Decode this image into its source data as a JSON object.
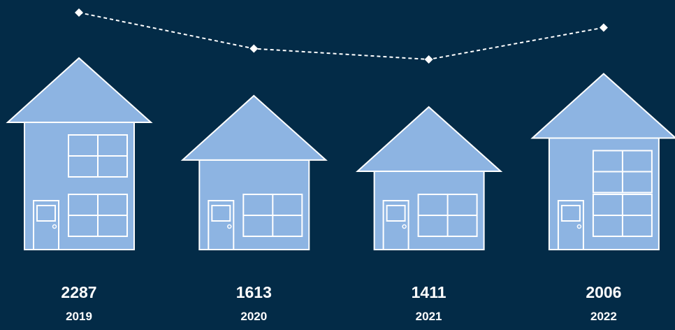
{
  "chart_data": {
    "type": "pictorial",
    "categories": [
      "2019",
      "2020",
      "2021",
      "2022"
    ],
    "values": [
      2287,
      1613,
      1411,
      2006
    ],
    "color": "#8db4e2",
    "line_color": "#ffffff",
    "background": "#032b47"
  }
}
